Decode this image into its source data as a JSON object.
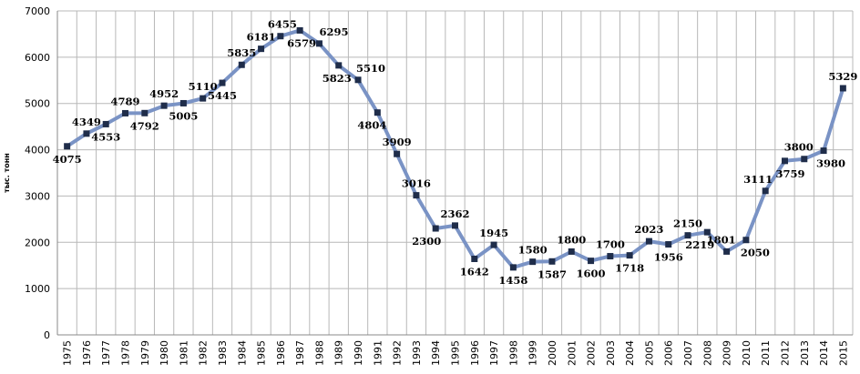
{
  "chart_data": {
    "type": "line",
    "title": "",
    "xlabel": "",
    "ylabel": "тыс. тонн",
    "ylim": [
      0,
      7000
    ],
    "yticks": [
      0,
      1000,
      2000,
      3000,
      4000,
      5000,
      6000,
      7000
    ],
    "grid": true,
    "line_color": "#7a93c5",
    "marker_color": "#1f2d4a",
    "series": [
      {
        "x": [
          "1975",
          "1976",
          "1977",
          "1978",
          "1979",
          "1980",
          "1981",
          "1982",
          "1983",
          "1984",
          "1985",
          "1986",
          "1987",
          "1988",
          "1989",
          "1990",
          "1991",
          "1992",
          "1993",
          "1994",
          "1995",
          "1996",
          "1997",
          "1998",
          "1999",
          "2000",
          "2001",
          "2002",
          "2003",
          "2004",
          "2005",
          "2006",
          "2007",
          "2008",
          "2009",
          "2010",
          "2011",
          "2012",
          "2013",
          "2014",
          "2015"
        ],
        "values": [
          4075,
          4349,
          4553,
          4789,
          4792,
          4952,
          5005,
          5110,
          5445,
          5835,
          6181,
          6455,
          6579,
          6295,
          5823,
          5510,
          4804,
          3909,
          3016,
          2300,
          2362,
          1642,
          1945,
          1458,
          1580,
          1587,
          1800,
          1600,
          1700,
          1718,
          2023,
          1956,
          2150,
          2219,
          1801,
          2050,
          3111,
          3759,
          3800,
          3980,
          5329
        ],
        "labels": [
          "4075",
          "4349",
          "4553",
          "4789",
          "4792",
          "4952",
          "5005",
          "5110",
          "5445",
          "5835",
          "6181",
          "6455",
          "6579",
          "6295",
          "5823",
          "5510",
          "4804",
          "3909",
          "3016",
          "2300",
          "2362",
          "1642",
          "1945",
          "1458",
          "1580",
          "1587",
          "1800",
          "1600",
          "1700",
          "1718",
          "2023",
          "1956",
          "2150",
          "2219",
          "1801",
          "2050",
          "3111",
          "3759",
          "3800",
          "3980",
          "5329"
        ]
      }
    ]
  }
}
